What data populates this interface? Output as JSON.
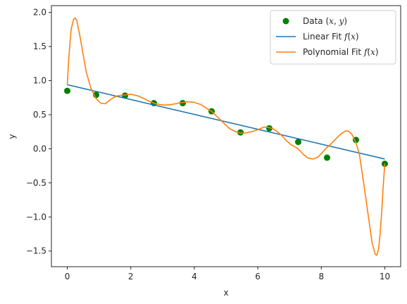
{
  "chart_data": {
    "type": "scatter",
    "xlabel": "x",
    "ylabel": "y",
    "xlim": [
      -0.5,
      10.5
    ],
    "ylim": [
      -1.73,
      2.1
    ],
    "xticks": [
      0,
      2,
      4,
      6,
      8,
      10
    ],
    "xtick_labels": [
      "0",
      "2",
      "4",
      "6",
      "8",
      "10"
    ],
    "yticks": [
      -1.5,
      -1.0,
      -0.5,
      0.0,
      0.5,
      1.0,
      1.5,
      2.0
    ],
    "ytick_labels": [
      "−1.5",
      "−1.0",
      "−0.5",
      "0.0",
      "0.5",
      "1.0",
      "1.5",
      "2.0"
    ],
    "grid": false,
    "legend_position": "top-right",
    "series": [
      {
        "name": "Data (x, y)",
        "legend_prefix": "Data (",
        "legend_vars": [
          "x",
          "y"
        ],
        "legend_suffix": ")",
        "kind": "scatter",
        "color": "#008000",
        "x": [
          0.0,
          0.909,
          1.818,
          2.727,
          3.636,
          4.545,
          5.455,
          6.364,
          7.273,
          8.182,
          9.091,
          10.0
        ],
        "y": [
          0.85,
          0.79,
          0.78,
          0.67,
          0.67,
          0.55,
          0.24,
          0.3,
          0.1,
          -0.13,
          0.13,
          -0.22
        ]
      },
      {
        "name": "Linear Fit f(x)",
        "legend_prefix": "Linear Fit ",
        "legend_func": "f(x)",
        "kind": "line",
        "color": "#1f77b4",
        "x": [
          0,
          10
        ],
        "y": [
          0.94,
          -0.15
        ]
      },
      {
        "name": "Polynomial Fit f(x)",
        "legend_prefix": "Polynomial Fit ",
        "legend_func": "f(x)",
        "kind": "line",
        "color": "#ff7f0e",
        "x": [
          0.0,
          0.05,
          0.12,
          0.2,
          0.25,
          0.3,
          0.4,
          0.5,
          0.6,
          0.75,
          0.9,
          1.05,
          1.2,
          1.3,
          1.45,
          1.6,
          1.8,
          2.0,
          2.2,
          2.4,
          2.6,
          2.727,
          2.9,
          3.1,
          3.3,
          3.5,
          3.636,
          3.8,
          4.0,
          4.2,
          4.4,
          4.545,
          4.7,
          4.9,
          5.1,
          5.3,
          5.455,
          5.6,
          5.8,
          6.0,
          6.2,
          6.364,
          6.5,
          6.7,
          6.9,
          7.05,
          7.273,
          7.45,
          7.6,
          7.75,
          7.9,
          8.0,
          8.1,
          8.182,
          8.3,
          8.45,
          8.6,
          8.75,
          8.85,
          8.95,
          9.0,
          9.091,
          9.2,
          9.35,
          9.5,
          9.6,
          9.7,
          9.75,
          9.8,
          9.85,
          9.9,
          9.95,
          10.0
        ],
        "y": [
          0.94,
          1.35,
          1.75,
          1.9,
          1.92,
          1.88,
          1.65,
          1.38,
          1.12,
          0.88,
          0.74,
          0.67,
          0.66,
          0.7,
          0.75,
          0.78,
          0.79,
          0.8,
          0.78,
          0.74,
          0.69,
          0.67,
          0.65,
          0.64,
          0.65,
          0.67,
          0.68,
          0.69,
          0.68,
          0.65,
          0.59,
          0.55,
          0.48,
          0.39,
          0.3,
          0.25,
          0.23,
          0.23,
          0.25,
          0.28,
          0.32,
          0.31,
          0.29,
          0.22,
          0.12,
          0.06,
          0.0,
          -0.09,
          -0.14,
          -0.15,
          -0.12,
          -0.07,
          -0.02,
          0.02,
          0.07,
          0.14,
          0.21,
          0.26,
          0.26,
          0.22,
          0.18,
          0.09,
          -0.08,
          -0.55,
          -1.05,
          -1.38,
          -1.55,
          -1.56,
          -1.48,
          -1.27,
          -0.95,
          -0.55,
          -0.22
        ]
      }
    ]
  }
}
